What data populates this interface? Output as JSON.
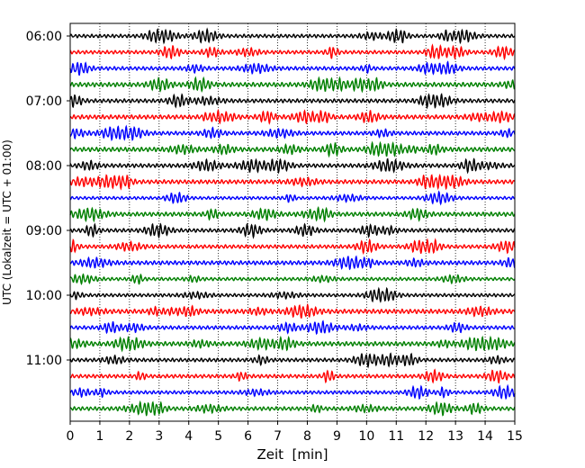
{
  "chart_data": {
    "type": "line",
    "title": "",
    "xlabel": "Zeit  [min]",
    "ylabel": "UTC (Lokalzeit = UTC + 01:00)",
    "xlim": [
      0,
      15
    ],
    "x_ticks": [
      0,
      1,
      2,
      3,
      4,
      5,
      6,
      7,
      8,
      9,
      10,
      11,
      12,
      13,
      14,
      15
    ],
    "x_grid": true,
    "y_ticks": [
      "06:00",
      "07:00",
      "08:00",
      "09:00",
      "10:00",
      "11:00"
    ],
    "rows_per_hour": 4,
    "row_minutes": 15,
    "start_time": "06:00",
    "end_time": "12:00",
    "color_cycle": [
      "#000000",
      "#ff0000",
      "#0000ff",
      "#008000"
    ],
    "series_note": "seismogram helicorder traces; one 15-minute trace per row, colors cycle per hour quarter"
  }
}
